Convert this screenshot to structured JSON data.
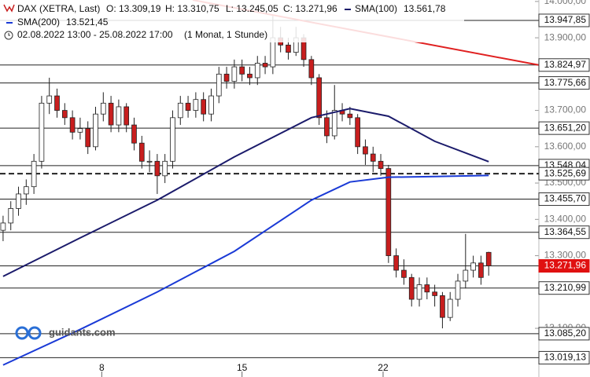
{
  "chart_data": {
    "type": "candlestick",
    "instrument": "DAX (XETRA, Last)",
    "ohlc_labels": [
      "O: 13.309,19",
      "H: 13.310,75",
      "L: 13.245,05",
      "C: 13.271,96"
    ],
    "period": "02.08.2022 13:00 - 25.08.2022 17:00",
    "interval": "(1 Monat, 1 Stunde)",
    "logo": "guidants.com",
    "up_color": "#ffffff",
    "down_color": "#c81e1e",
    "xlim": [
      -0.4,
      69
    ],
    "xticks": [
      {
        "value": 12.8,
        "label": "8"
      },
      {
        "value": 31,
        "label": "15"
      },
      {
        "value": 49.3,
        "label": "22"
      }
    ],
    "ylim": [
      12966,
      14004
    ],
    "yticks": [
      {
        "value": 14000,
        "label": "14.000,00"
      },
      {
        "value": 13900,
        "label": "13.900,00"
      },
      {
        "value": 13700,
        "label": "13.700,00"
      },
      {
        "value": 13600,
        "label": "13.600,00"
      },
      {
        "value": 13500,
        "label": "13.500,00"
      },
      {
        "value": 13400,
        "label": "13.400,00"
      },
      {
        "value": 13300,
        "label": "13.300,00"
      },
      {
        "value": 13100,
        "label": "13.100,00"
      }
    ],
    "candles": [
      [
        13370,
        13410,
        13340,
        13390
      ],
      [
        13390,
        13450,
        13370,
        13430
      ],
      [
        13430,
        13490,
        13410,
        13470
      ],
      [
        13470,
        13510,
        13440,
        13490
      ],
      [
        13490,
        13580,
        13470,
        13560
      ],
      [
        13560,
        13740,
        13540,
        13720
      ],
      [
        13720,
        13790,
        13690,
        13740
      ],
      [
        13740,
        13760,
        13680,
        13700
      ],
      [
        13700,
        13720,
        13660,
        13680
      ],
      [
        13680,
        13700,
        13620,
        13640
      ],
      [
        13640,
        13680,
        13620,
        13650
      ],
      [
        13650,
        13670,
        13580,
        13600
      ],
      [
        13600,
        13710,
        13590,
        13690
      ],
      [
        13690,
        13750,
        13670,
        13720
      ],
      [
        13720,
        13740,
        13640,
        13660
      ],
      [
        13660,
        13730,
        13640,
        13710
      ],
      [
        13710,
        13720,
        13640,
        13660
      ],
      [
        13660,
        13680,
        13590,
        13610
      ],
      [
        13610,
        13630,
        13540,
        13560
      ],
      [
        13560,
        13590,
        13530,
        13560
      ],
      [
        13560,
        13580,
        13470,
        13520
      ],
      [
        13520,
        13580,
        13500,
        13560
      ],
      [
        13560,
        13700,
        13540,
        13680
      ],
      [
        13680,
        13740,
        13660,
        13720
      ],
      [
        13720,
        13740,
        13680,
        13700
      ],
      [
        13700,
        13750,
        13680,
        13730
      ],
      [
        13730,
        13750,
        13670,
        13690
      ],
      [
        13690,
        13760,
        13670,
        13740
      ],
      [
        13740,
        13820,
        13720,
        13800
      ],
      [
        13800,
        13820,
        13760,
        13780
      ],
      [
        13780,
        13840,
        13760,
        13820
      ],
      [
        13820,
        13840,
        13780,
        13800
      ],
      [
        13800,
        13820,
        13770,
        13790
      ],
      [
        13790,
        13850,
        13770,
        13830
      ],
      [
        13830,
        13850,
        13800,
        13820
      ],
      [
        13820,
        13960,
        13800,
        13900
      ],
      [
        13900,
        13930,
        13860,
        13880
      ],
      [
        13880,
        13900,
        13840,
        13860
      ],
      [
        13860,
        13930,
        13850,
        13900
      ],
      [
        13900,
        13910,
        13820,
        13840
      ],
      [
        13840,
        13850,
        13770,
        13790
      ],
      [
        13790,
        13800,
        13660,
        13680
      ],
      [
        13680,
        13700,
        13610,
        13630
      ],
      [
        13630,
        13770,
        13620,
        13700
      ],
      [
        13700,
        13720,
        13670,
        13690
      ],
      [
        13690,
        13710,
        13660,
        13680
      ],
      [
        13680,
        13690,
        13580,
        13600
      ],
      [
        13600,
        13620,
        13550,
        13580
      ],
      [
        13580,
        13600,
        13530,
        13560
      ],
      [
        13560,
        13580,
        13520,
        13540
      ],
      [
        13540,
        13550,
        13280,
        13300
      ],
      [
        13300,
        13320,
        13240,
        13260
      ],
      [
        13260,
        13290,
        13220,
        13240
      ],
      [
        13240,
        13250,
        13160,
        13180
      ],
      [
        13180,
        13240,
        13160,
        13220
      ],
      [
        13220,
        13240,
        13180,
        13200
      ],
      [
        13200,
        13220,
        13160,
        13190
      ],
      [
        13190,
        13200,
        13100,
        13130
      ],
      [
        13130,
        13200,
        13120,
        13180
      ],
      [
        13180,
        13250,
        13160,
        13230
      ],
      [
        13230,
        13360,
        13210,
        13260
      ],
      [
        13260,
        13300,
        13240,
        13280
      ],
      [
        13280,
        13300,
        13220,
        13240
      ],
      [
        13309.19,
        13310.75,
        13245.05,
        13271.96
      ]
    ],
    "series": [
      {
        "name": "SMA(100)",
        "last_label": "13.561,78",
        "color": "#1b1b6b",
        "x": [
          0,
          10,
          20,
          30,
          40,
          45,
          50,
          56,
          63
        ],
        "values": [
          13243,
          13349,
          13453,
          13572,
          13680,
          13705,
          13684,
          13615,
          13559
        ]
      },
      {
        "name": "SMA(200)",
        "last_label": "13.521,45",
        "color": "#1a3ad6",
        "x": [
          0,
          10,
          20,
          30,
          40,
          45,
          50,
          56,
          63
        ],
        "values": [
          12999,
          13097,
          13200,
          13312,
          13453,
          13503,
          13516,
          13518,
          13521
        ]
      }
    ],
    "trendline": {
      "color": "#e02020",
      "x": [
        24.6,
        69.5
      ],
      "values": [
        14004,
        13824.97
      ]
    },
    "levels": [
      {
        "value": 13947.85,
        "label": "13.947,85"
      },
      {
        "value": 13824.97,
        "label": "13.824,97"
      },
      {
        "value": 13775.66,
        "label": "13.775,66"
      },
      {
        "value": 13651.2,
        "label": "13.651,20"
      },
      {
        "value": 13548.04,
        "label": "13.548,04"
      },
      {
        "value": 13525.69,
        "label": "13.525,69",
        "style": "dashed"
      },
      {
        "value": 13455.7,
        "label": "13.455,70"
      },
      {
        "value": 13364.55,
        "label": "13.364,55"
      },
      {
        "value": 13271.96,
        "label": "13.271,96",
        "current": true
      },
      {
        "value": 13210.99,
        "label": "13.210,99"
      },
      {
        "value": 13085.2,
        "label": "13.085,20"
      },
      {
        "value": 13019.13,
        "label": "13.019,13"
      }
    ]
  }
}
